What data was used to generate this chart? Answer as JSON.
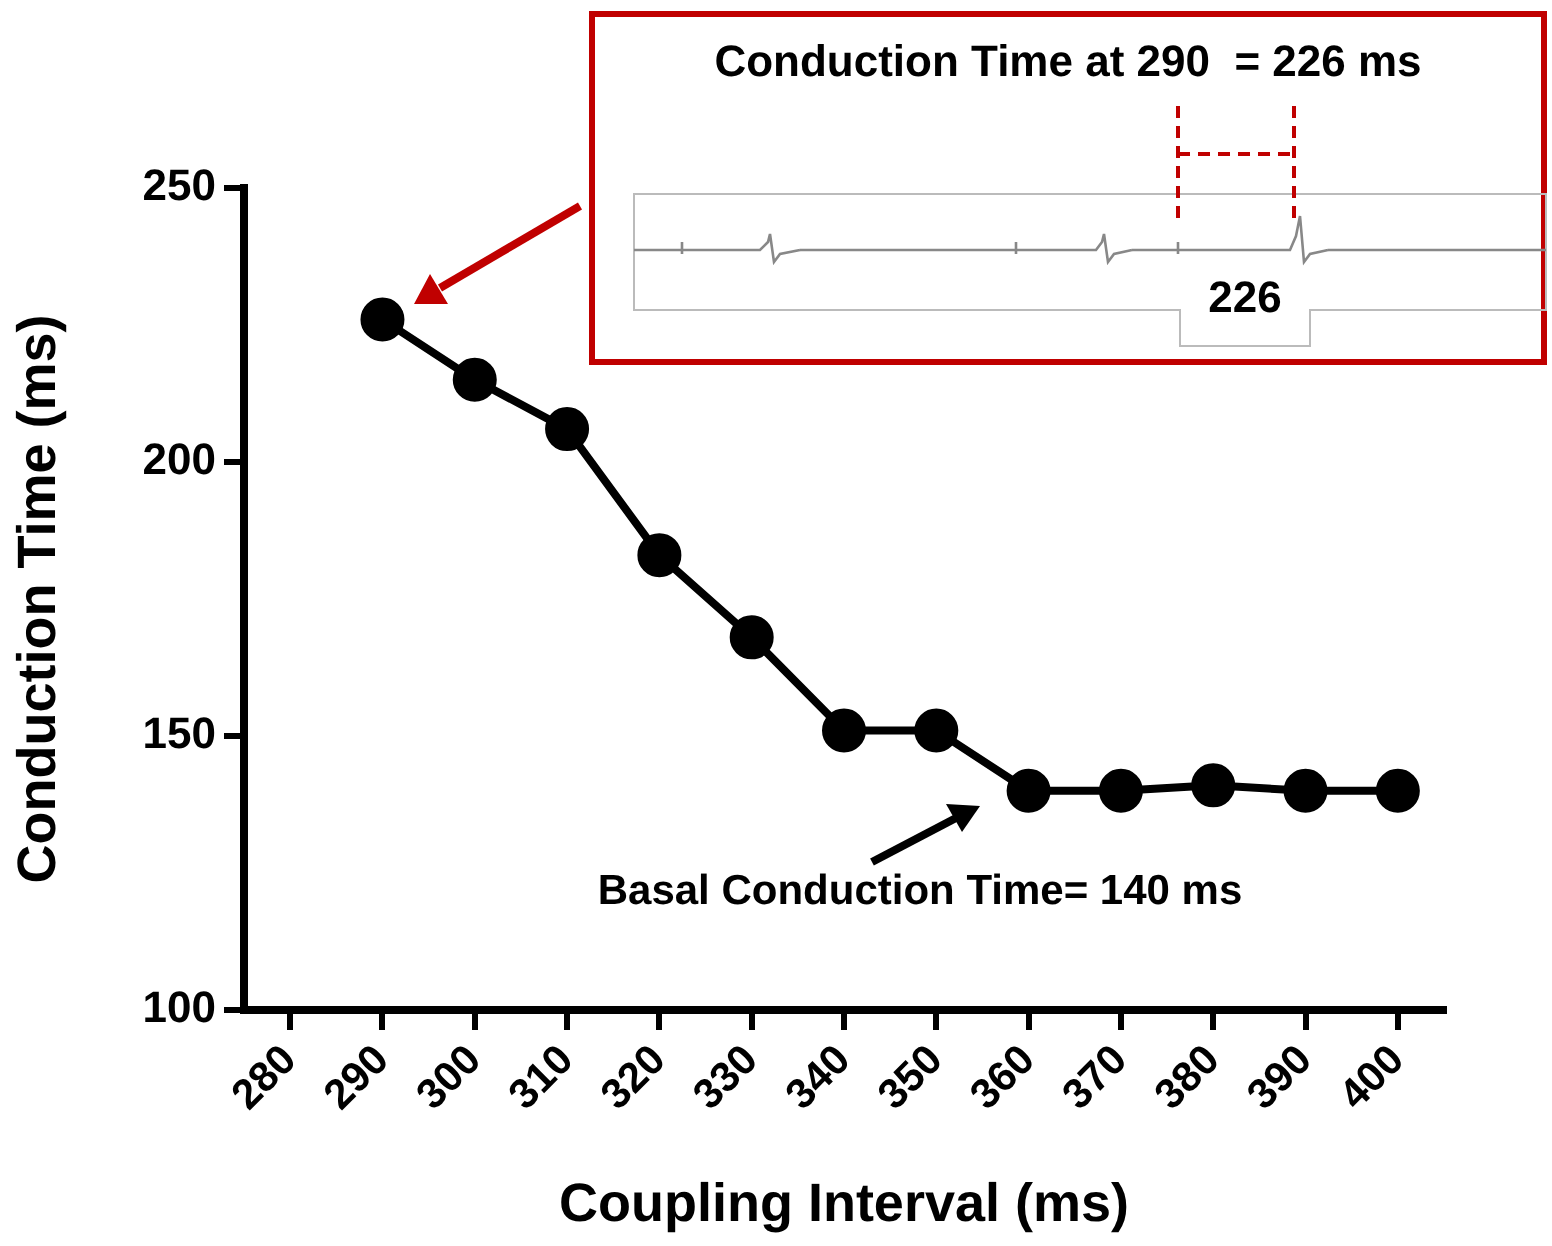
{
  "chart_data": {
    "type": "line",
    "xlabel": "Coupling Interval (ms)",
    "ylabel": "Conduction Time (ms)",
    "x": [
      290,
      300,
      310,
      320,
      330,
      340,
      350,
      360,
      370,
      380,
      390,
      400
    ],
    "series": [
      {
        "color": "#000000",
        "values": [
          226,
          215,
          206,
          183,
          168,
          151,
          151,
          140,
          140,
          141,
          140,
          140
        ]
      }
    ],
    "xlim": [
      275,
      405
    ],
    "xticks": [
      280,
      290,
      300,
      310,
      320,
      330,
      340,
      350,
      360,
      370,
      380,
      390,
      400
    ],
    "ylim": [
      100,
      250
    ],
    "yticks": [
      100,
      150,
      200,
      250
    ],
    "marker": "circle",
    "line_style": "solid",
    "legend": false,
    "annotations": [
      "Conduction Time at 290  = 226 ms",
      "226",
      "Basal Conduction Time= 140 ms"
    ]
  }
}
